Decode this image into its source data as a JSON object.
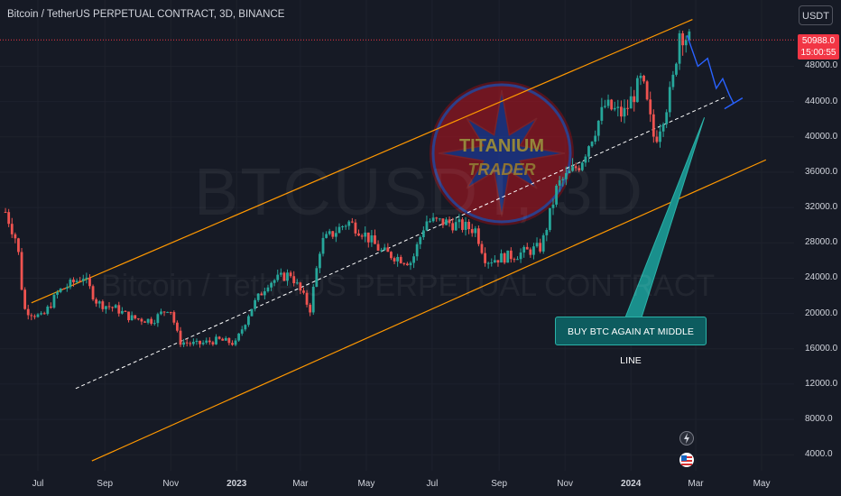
{
  "header": {
    "title": "Bitcoin / TetherUS PERPETUAL CONTRACT, 3D, BINANCE"
  },
  "currency": "USDT",
  "price_tag": {
    "price": "50988.0",
    "countdown": "15:00:55"
  },
  "watermark": {
    "symbol": "BTCUSDT, 3D",
    "description": "Bitcoin / TetherUS PERPETUAL CONTRACT"
  },
  "logo": {
    "line1": "TITANIUM",
    "line2": "TRADER"
  },
  "callout": {
    "text": "BUY BTC AGAIN AT MIDDLE LINE"
  },
  "colors": {
    "background": "#161a25",
    "up": "#26a69a",
    "down": "#ef5350",
    "channel": "#ff9800",
    "midline": "#ffffff",
    "projection": "#2962ff",
    "arrow": "#1a8f8c"
  },
  "chart_data": {
    "type": "candlestick",
    "y_ticks": [
      "4000.0",
      "8000.0",
      "12000.0",
      "16000.0",
      "20000.0",
      "24000.0",
      "28000.0",
      "32000.0",
      "36000.0",
      "40000.0",
      "44000.0",
      "48000.0"
    ],
    "x_ticks": [
      {
        "label": "Jul",
        "bold": false
      },
      {
        "label": "Sep",
        "bold": false
      },
      {
        "label": "Nov",
        "bold": false
      },
      {
        "label": "2023",
        "bold": true
      },
      {
        "label": "Mar",
        "bold": false
      },
      {
        "label": "May",
        "bold": false
      },
      {
        "label": "Jul",
        "bold": false
      },
      {
        "label": "Sep",
        "bold": false
      },
      {
        "label": "Nov",
        "bold": false
      },
      {
        "label": "2024",
        "bold": true
      },
      {
        "label": "Mar",
        "bold": false
      },
      {
        "label": "May",
        "bold": false
      }
    ],
    "ylim": [
      4000,
      52000
    ],
    "current_price": 50988,
    "closes": [
      {
        "date": "2022-06-01",
        "price": 31500
      },
      {
        "date": "2022-06-12",
        "price": 28000
      },
      {
        "date": "2022-06-18",
        "price": 20500
      },
      {
        "date": "2022-07-05",
        "price": 19500
      },
      {
        "date": "2022-07-20",
        "price": 22500
      },
      {
        "date": "2022-08-12",
        "price": 24200
      },
      {
        "date": "2022-08-25",
        "price": 21200
      },
      {
        "date": "2022-09-12",
        "price": 20500
      },
      {
        "date": "2022-09-25",
        "price": 19500
      },
      {
        "date": "2022-10-15",
        "price": 19200
      },
      {
        "date": "2022-10-31",
        "price": 20800
      },
      {
        "date": "2022-11-09",
        "price": 16800
      },
      {
        "date": "2022-11-25",
        "price": 16500
      },
      {
        "date": "2022-12-15",
        "price": 17000
      },
      {
        "date": "2022-12-31",
        "price": 16600
      },
      {
        "date": "2023-01-14",
        "price": 20500
      },
      {
        "date": "2023-01-30",
        "price": 23500
      },
      {
        "date": "2023-02-20",
        "price": 24500
      },
      {
        "date": "2023-03-10",
        "price": 20500
      },
      {
        "date": "2023-03-20",
        "price": 28000
      },
      {
        "date": "2023-04-14",
        "price": 30400
      },
      {
        "date": "2023-04-27",
        "price": 29300
      },
      {
        "date": "2023-05-15",
        "price": 27000
      },
      {
        "date": "2023-06-12",
        "price": 25800
      },
      {
        "date": "2023-06-25",
        "price": 30500
      },
      {
        "date": "2023-07-15",
        "price": 30300
      },
      {
        "date": "2023-08-10",
        "price": 29500
      },
      {
        "date": "2023-08-20",
        "price": 26000
      },
      {
        "date": "2023-09-15",
        "price": 26600
      },
      {
        "date": "2023-10-10",
        "price": 27500
      },
      {
        "date": "2023-10-25",
        "price": 34500
      },
      {
        "date": "2023-11-15",
        "price": 37000
      },
      {
        "date": "2023-12-08",
        "price": 43500
      },
      {
        "date": "2023-12-25",
        "price": 42500
      },
      {
        "date": "2024-01-11",
        "price": 46500
      },
      {
        "date": "2024-01-23",
        "price": 39500
      },
      {
        "date": "2024-02-08",
        "price": 45500
      },
      {
        "date": "2024-02-15",
        "price": 52000
      },
      {
        "date": "2024-02-24",
        "price": 50988
      }
    ]
  }
}
